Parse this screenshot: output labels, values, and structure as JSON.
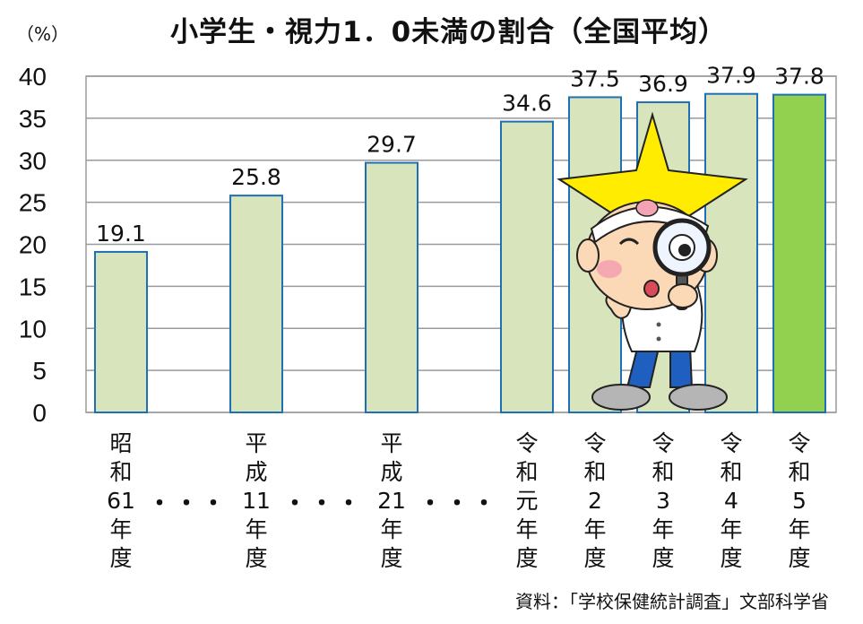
{
  "title": "小学生・視力1．0未満の割合（全国平均）",
  "unit_label": "（%）",
  "source": "資料：「学校保健統計調査」文部科学省",
  "gap_marker": "・・・",
  "colors": {
    "bar_fill": "#d8e4bc",
    "bar_highlight_fill": "#92d050",
    "bar_stroke": "#1f6fb4",
    "grid": "#9a9a9a"
  },
  "chart_data": {
    "type": "bar",
    "title": "小学生・視力1．0未満の割合（全国平均）",
    "ylabel": "（%）",
    "ylim": [
      0,
      40
    ],
    "yticks": [
      0,
      5,
      10,
      15,
      20,
      25,
      30,
      35,
      40
    ],
    "grid": true,
    "categories": [
      "昭和61年度",
      "平成11年度",
      "平成21年度",
      "令和元年度",
      "令和2年度",
      "令和3年度",
      "令和4年度",
      "令和5年度"
    ],
    "category_lines": [
      [
        "昭",
        "和",
        "61",
        "年",
        "度"
      ],
      [
        "平",
        "成",
        "11",
        "年",
        "度"
      ],
      [
        "平",
        "成",
        "21",
        "年",
        "度"
      ],
      [
        "令",
        "和",
        "元",
        "年",
        "度"
      ],
      [
        "令",
        "和",
        "2",
        "年",
        "度"
      ],
      [
        "令",
        "和",
        "3",
        "年",
        "度"
      ],
      [
        "令",
        "和",
        "4",
        "年",
        "度"
      ],
      [
        "令",
        "和",
        "5",
        "年",
        "度"
      ]
    ],
    "values": [
      19.1,
      25.8,
      29.7,
      34.6,
      37.5,
      36.9,
      37.9,
      37.8
    ],
    "value_labels": [
      "19.1",
      "25.8",
      "29.7",
      "34.6",
      "37.5",
      "36.9",
      "37.9",
      "37.8"
    ],
    "highlight_index": 7
  },
  "mascot": "magnifying-glass-mascot"
}
